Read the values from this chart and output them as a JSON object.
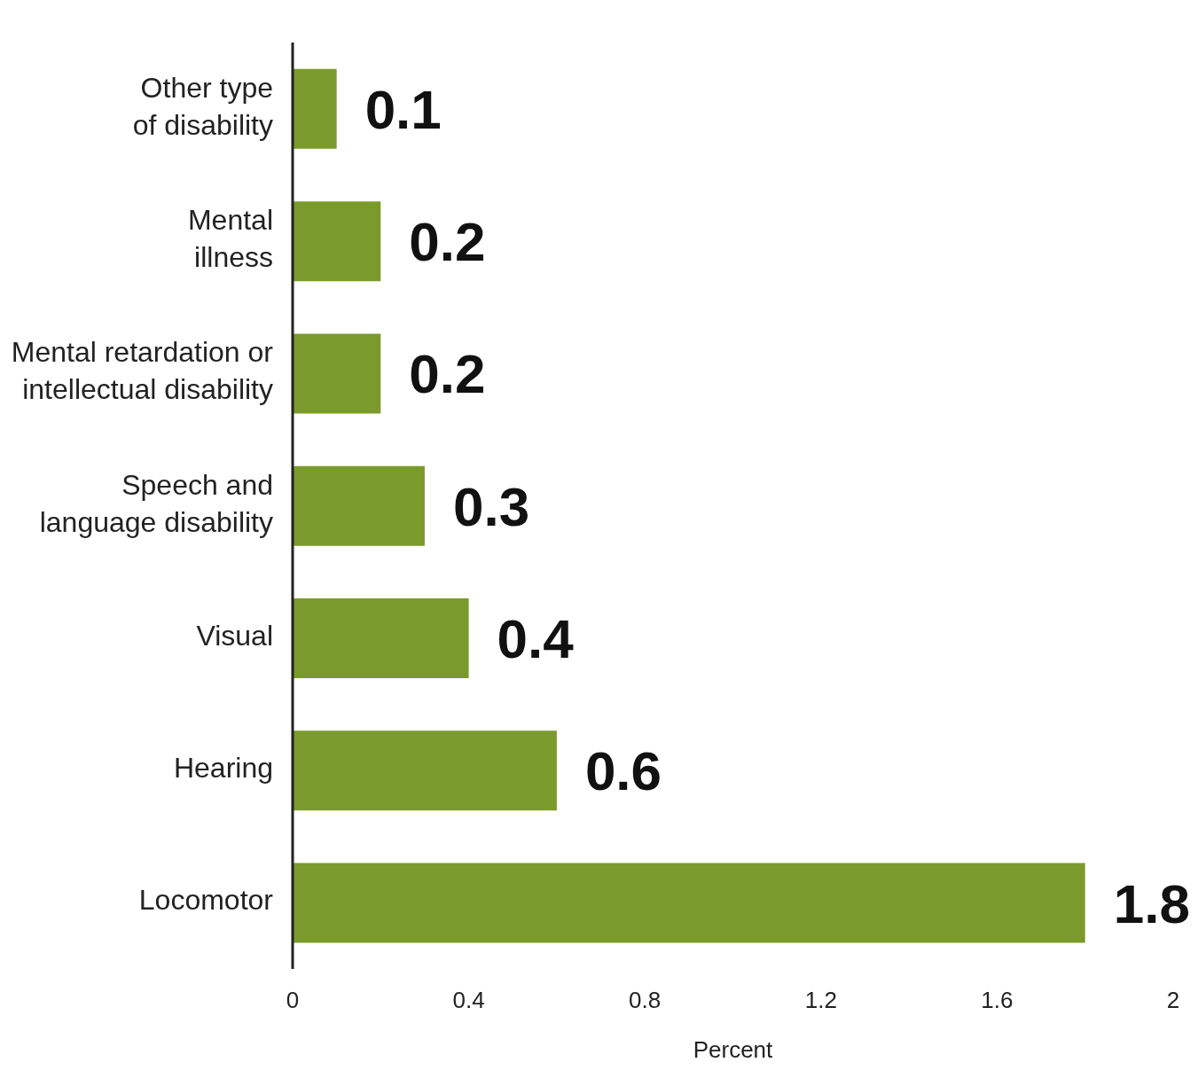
{
  "chart_data": {
    "type": "bar",
    "orientation": "horizontal",
    "xlabel": "Percent",
    "categories": [
      "Other type of disability",
      "Mental illness",
      "Mental retardation or intellectual disability",
      "Speech and language disability",
      "Visual",
      "Hearing",
      "Locomotor"
    ],
    "values": [
      0.1,
      0.2,
      0.2,
      0.3,
      0.4,
      0.6,
      1.8
    ],
    "color": "#7b9a2c",
    "xlim": [
      0,
      2
    ],
    "xticks": [
      0,
      0.4,
      0.8,
      1.2,
      1.6,
      2
    ],
    "grid": false,
    "data_labels": true
  }
}
